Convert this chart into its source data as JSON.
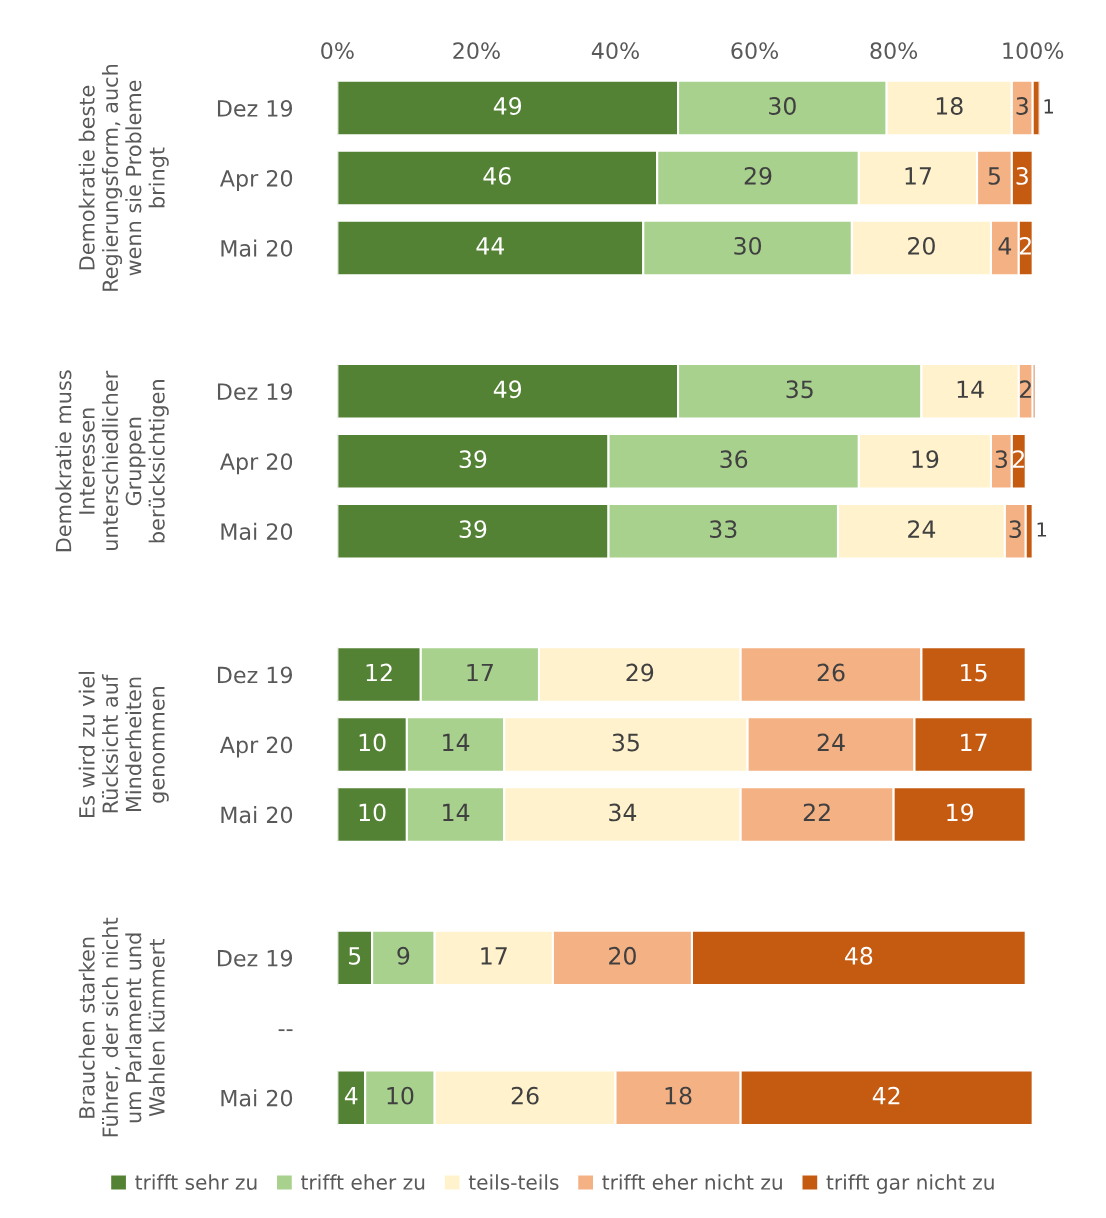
{
  "chart_data": [
    {
      "type": "bar",
      "orientation": "horizontal",
      "stacked": true,
      "ylabel": "Demokratie beste\nRegierungsform, auch\nwenn sie Probleme\nbringt",
      "categories": [
        "Dez 19",
        "Apr 20",
        "Mai 20"
      ],
      "xlim": [
        0,
        101
      ],
      "xticks": [
        {
          "value": 0,
          "label": "0%"
        },
        {
          "value": 20,
          "label": "20%"
        },
        {
          "value": 40,
          "label": "40%"
        },
        {
          "value": 60,
          "label": "60%"
        },
        {
          "value": 80,
          "label": "80%"
        },
        {
          "value": 100,
          "label": "100%"
        }
      ],
      "data_labels": true,
      "grid": false,
      "legend": "bottom",
      "series": [
        {
          "name": "trifft sehr zu",
          "color": "#548235",
          "values": [
            49,
            46,
            44
          ]
        },
        {
          "name": "trifft eher zu",
          "color": "#a9d18e",
          "values": [
            30,
            29,
            30
          ]
        },
        {
          "name": "teils-teils",
          "color": "#fff2cc",
          "values": [
            18,
            17,
            20
          ]
        },
        {
          "name": "trifft eher nicht zu",
          "color": "#f4b183",
          "values": [
            3,
            5,
            4
          ]
        },
        {
          "name": "trifft gar nicht zu",
          "color": "#c55a11",
          "values": [
            1,
            3,
            2
          ]
        }
      ]
    },
    {
      "type": "bar",
      "orientation": "horizontal",
      "stacked": true,
      "ylabel": "Demokratie muss\nInteressen\nunterschiedlicher\nGruppen\nberücksichtigen",
      "categories": [
        "Dez 19",
        "Apr 20",
        "Mai 20"
      ],
      "xlim": [
        0,
        101
      ],
      "tick_labels": "y",
      "grid": false,
      "series": [
        {
          "color": "#548235",
          "values": [
            49,
            39,
            39
          ],
          "value_labels": [
            "49",
            "39",
            "39"
          ]
        },
        {
          "color": "#a9d18e",
          "values": [
            35,
            36,
            33
          ],
          "value_labels": [
            "35",
            "36",
            "33"
          ]
        },
        {
          "color": "#fff2cc",
          "values": [
            14,
            19,
            24
          ],
          "value_labels": [
            "14",
            "19",
            "24"
          ]
        },
        {
          "color": "#f4b183",
          "values": [
            2,
            3,
            3
          ],
          "value_labels": [
            "2",
            "3",
            "3"
          ]
        },
        {
          "color": "#c55a11",
          "values": [
            0.4,
            2,
            1
          ],
          "value_labels": [
            null,
            "2",
            "1"
          ]
        }
      ]
    },
    {
      "type": "bar",
      "orientation": "horizontal",
      "stacked": true,
      "ylabel": "Es wird zu viel\nRücksicht auf\nMinderheiten\ngenommen",
      "categories": [
        "Dez 19",
        "Apr 20",
        "Mai 20"
      ],
      "xlim": [
        0,
        101
      ],
      "tick_labels": "y",
      "data_labels": true,
      "grid": false,
      "series": [
        {
          "color": "#548235",
          "values": [
            12,
            10,
            10
          ]
        },
        {
          "color": "#a9d18e",
          "values": [
            17,
            14,
            14
          ]
        },
        {
          "color": "#fff2cc",
          "values": [
            29,
            35,
            34
          ]
        },
        {
          "color": "#f4b183",
          "values": [
            26,
            24,
            22
          ]
        },
        {
          "color": "#c55a11",
          "values": [
            15,
            17,
            19
          ]
        }
      ]
    },
    {
      "type": "bar",
      "orientation": "horizontal",
      "stacked": true,
      "ylabel": "Brauchen starken\nFührer, der sich nicht\num Parlament und\nWahlen kümmert",
      "categories": [
        "Dez 19",
        "--",
        "Mai 20"
      ],
      "xlim": [
        0,
        101
      ],
      "tick_labels": "y",
      "data_labels": true,
      "grid": false,
      "series": [
        {
          "color": "#548235",
          "values": [
            5,
            null,
            4
          ]
        },
        {
          "color": "#a9d18e",
          "values": [
            9,
            null,
            10
          ]
        },
        {
          "color": "#fff2cc",
          "values": [
            17,
            null,
            26
          ]
        },
        {
          "color": "#f4b183",
          "values": [
            20,
            null,
            18
          ]
        },
        {
          "color": "#c55a11",
          "values": [
            48,
            null,
            42
          ]
        }
      ]
    }
  ]
}
